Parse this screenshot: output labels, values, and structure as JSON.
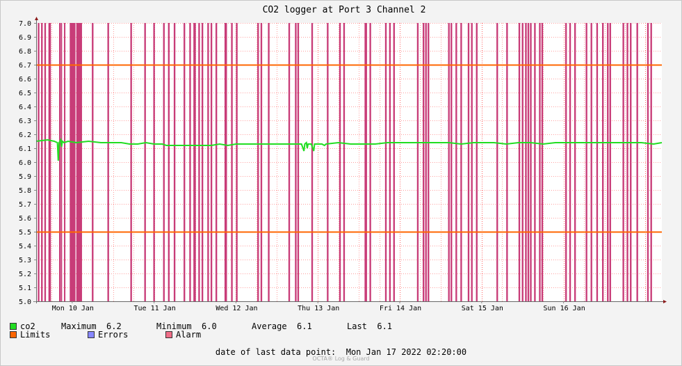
{
  "chart_data": {
    "type": "line",
    "title": "CO2 logger at Port 3 Channel 2",
    "ylim": [
      5.0,
      7.0
    ],
    "y_ticks": [
      "5.0",
      "5.1",
      "5.2",
      "5.3",
      "5.4",
      "5.5",
      "5.6",
      "5.7",
      "5.8",
      "5.9",
      "6.0",
      "6.1",
      "6.2",
      "6.3",
      "6.4",
      "6.5",
      "6.6",
      "6.7",
      "6.8",
      "6.9",
      "7.0"
    ],
    "xlim": [
      -0.44,
      7.2
    ],
    "x_ticks": [
      {
        "label": "Mon 10 Jan",
        "day": 0
      },
      {
        "label": "Tue 11 Jan",
        "day": 1
      },
      {
        "label": "Wed 12 Jan",
        "day": 2
      },
      {
        "label": "Thu 13 Jan",
        "day": 3
      },
      {
        "label": "Fri 14 Jan",
        "day": 4
      },
      {
        "label": "Sat 15 Jan",
        "day": 5
      },
      {
        "label": "Sun 16 Jan",
        "day": 6
      }
    ],
    "limits": [
      5.5,
      6.7
    ],
    "series": [
      {
        "name": "co2",
        "color": "#22dd22",
        "points": [
          [
            -0.44,
            6.15
          ],
          [
            -0.3,
            6.16
          ],
          [
            -0.22,
            6.15
          ],
          [
            -0.18,
            6.14
          ],
          [
            -0.17,
            6.01
          ],
          [
            -0.16,
            6.14
          ],
          [
            -0.14,
            6.16
          ],
          [
            -0.13,
            6.11
          ],
          [
            -0.12,
            6.15
          ],
          [
            -0.1,
            6.14
          ],
          [
            -0.05,
            6.15
          ],
          [
            0.05,
            6.14
          ],
          [
            0.2,
            6.15
          ],
          [
            0.35,
            6.14
          ],
          [
            0.5,
            6.14
          ],
          [
            0.6,
            6.14
          ],
          [
            0.7,
            6.13
          ],
          [
            0.8,
            6.13
          ],
          [
            0.9,
            6.14
          ],
          [
            1.0,
            6.13
          ],
          [
            1.1,
            6.13
          ],
          [
            1.15,
            6.12
          ],
          [
            1.3,
            6.12
          ],
          [
            1.45,
            6.12
          ],
          [
            1.6,
            6.12
          ],
          [
            1.7,
            6.12
          ],
          [
            1.8,
            6.13
          ],
          [
            1.9,
            6.12
          ],
          [
            2.0,
            6.13
          ],
          [
            2.15,
            6.13
          ],
          [
            2.3,
            6.13
          ],
          [
            2.45,
            6.13
          ],
          [
            2.6,
            6.13
          ],
          [
            2.7,
            6.13
          ],
          [
            2.8,
            6.13
          ],
          [
            2.83,
            6.08
          ],
          [
            2.84,
            6.13
          ],
          [
            2.86,
            6.14
          ],
          [
            2.87,
            6.1
          ],
          [
            2.88,
            6.13
          ],
          [
            2.92,
            6.13
          ],
          [
            2.95,
            6.08
          ],
          [
            2.96,
            6.13
          ],
          [
            3.05,
            6.13
          ],
          [
            3.08,
            6.12
          ],
          [
            3.1,
            6.13
          ],
          [
            3.25,
            6.14
          ],
          [
            3.4,
            6.13
          ],
          [
            3.55,
            6.13
          ],
          [
            3.7,
            6.13
          ],
          [
            3.85,
            6.14
          ],
          [
            4.0,
            6.14
          ],
          [
            4.15,
            6.14
          ],
          [
            4.3,
            6.14
          ],
          [
            4.45,
            6.14
          ],
          [
            4.6,
            6.14
          ],
          [
            4.75,
            6.13
          ],
          [
            4.9,
            6.14
          ],
          [
            5.0,
            6.14
          ],
          [
            5.15,
            6.14
          ],
          [
            5.3,
            6.13
          ],
          [
            5.45,
            6.14
          ],
          [
            5.6,
            6.14
          ],
          [
            5.75,
            6.13
          ],
          [
            5.9,
            6.14
          ],
          [
            6.05,
            6.14
          ],
          [
            6.2,
            6.14
          ],
          [
            6.35,
            6.14
          ],
          [
            6.5,
            6.14
          ],
          [
            6.65,
            6.14
          ],
          [
            6.8,
            6.14
          ],
          [
            6.95,
            6.14
          ],
          [
            7.1,
            6.13
          ],
          [
            7.2,
            6.14
          ]
        ]
      }
    ],
    "alarm_intervals": [
      [
        -0.42,
        -0.4
      ],
      [
        -0.38,
        -0.36
      ],
      [
        -0.34,
        -0.32
      ],
      [
        -0.29,
        -0.26
      ],
      [
        -0.16,
        -0.15
      ],
      [
        -0.14,
        -0.13
      ],
      [
        -0.1,
        -0.09
      ],
      [
        -0.03,
        0.04
      ],
      [
        0.05,
        0.12
      ],
      [
        0.24,
        0.26
      ],
      [
        0.43,
        0.45
      ],
      [
        0.71,
        0.73
      ],
      [
        0.88,
        0.9
      ],
      [
        0.99,
        1.01
      ],
      [
        1.11,
        1.13
      ],
      [
        1.17,
        1.19
      ],
      [
        1.24,
        1.26
      ],
      [
        1.36,
        1.38
      ],
      [
        1.43,
        1.45
      ],
      [
        1.48,
        1.51
      ],
      [
        1.54,
        1.56
      ],
      [
        1.58,
        1.6
      ],
      [
        1.65,
        1.67
      ],
      [
        1.69,
        1.71
      ],
      [
        1.75,
        1.77
      ],
      [
        1.86,
        1.89
      ],
      [
        1.94,
        1.96
      ],
      [
        2.0,
        2.02
      ],
      [
        2.26,
        2.28
      ],
      [
        2.3,
        2.32
      ],
      [
        2.39,
        2.41
      ],
      [
        2.64,
        2.66
      ],
      [
        2.72,
        2.74
      ],
      [
        2.75,
        2.77
      ],
      [
        2.92,
        2.94
      ],
      [
        3.11,
        3.13
      ],
      [
        3.26,
        3.28
      ],
      [
        3.31,
        3.33
      ],
      [
        3.57,
        3.6
      ],
      [
        3.63,
        3.65
      ],
      [
        3.82,
        3.84
      ],
      [
        3.87,
        3.89
      ],
      [
        3.92,
        3.94
      ],
      [
        4.21,
        4.23
      ],
      [
        4.28,
        4.3
      ],
      [
        4.31,
        4.33
      ],
      [
        4.34,
        4.36
      ],
      [
        4.59,
        4.61
      ],
      [
        4.62,
        4.64
      ],
      [
        4.68,
        4.7
      ],
      [
        4.74,
        4.76
      ],
      [
        4.83,
        4.85
      ],
      [
        4.87,
        4.89
      ],
      [
        4.93,
        4.95
      ],
      [
        5.18,
        5.2
      ],
      [
        5.3,
        5.32
      ],
      [
        5.45,
        5.47
      ],
      [
        5.49,
        5.51
      ],
      [
        5.53,
        5.55
      ],
      [
        5.56,
        5.58
      ],
      [
        5.59,
        5.61
      ],
      [
        5.64,
        5.66
      ],
      [
        5.7,
        5.72
      ],
      [
        5.73,
        5.75
      ],
      [
        6.02,
        6.04
      ],
      [
        6.07,
        6.09
      ],
      [
        6.13,
        6.15
      ],
      [
        6.27,
        6.29
      ],
      [
        6.33,
        6.35
      ],
      [
        6.4,
        6.42
      ],
      [
        6.47,
        6.49
      ],
      [
        6.53,
        6.55
      ],
      [
        6.56,
        6.58
      ],
      [
        6.72,
        6.74
      ],
      [
        6.77,
        6.79
      ],
      [
        6.81,
        6.83
      ],
      [
        6.89,
        6.91
      ],
      [
        7.02,
        7.04
      ],
      [
        7.06,
        7.08
      ]
    ],
    "colors": {
      "co2": "#22dd22",
      "limits": "#ff6600",
      "errors": "#8888ff",
      "alarm": "#c83c78",
      "alarm_legend": "#f06e88",
      "grid_minor": "#ff9d9d",
      "grid_major": "#ff6060"
    }
  },
  "legend": {
    "co2_label": "co2",
    "maximum_label": "Maximum",
    "maximum_value": "6.2",
    "minimum_label": "Minimum",
    "minimum_value": "6.0",
    "average_label": "Average",
    "average_value": "6.1",
    "last_label": "Last",
    "last_value": "6.1",
    "limits_label": "Limits",
    "errors_label": "Errors",
    "alarm_label": "Alarm"
  },
  "footer": {
    "last_point_label": "date of last data point:",
    "last_point_value": "Mon Jan 17 2022 02:20:00",
    "credit": "OCTA® Log & Guard"
  }
}
